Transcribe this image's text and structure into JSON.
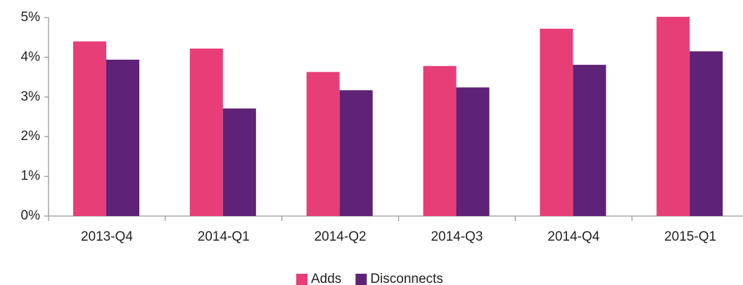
{
  "chart_data": {
    "type": "bar",
    "categories": [
      "2013-Q4",
      "2014-Q1",
      "2014-Q2",
      "2014-Q3",
      "2014-Q4",
      "2015-Q1"
    ],
    "series": [
      {
        "name": "Adds",
        "color": "#e83e78",
        "values": [
          4.4,
          4.22,
          3.63,
          3.78,
          4.72,
          5.02
        ]
      },
      {
        "name": "Disconnects",
        "color": "#5e2377",
        "values": [
          3.94,
          2.71,
          3.17,
          3.24,
          3.81,
          4.15
        ]
      }
    ],
    "ylim": [
      0,
      5
    ],
    "yticks": [
      {
        "value": 0,
        "label": "0%"
      },
      {
        "value": 1,
        "label": "1%"
      },
      {
        "value": 2,
        "label": "2%"
      },
      {
        "value": 3,
        "label": "3%"
      },
      {
        "value": 4,
        "label": "4%"
      },
      {
        "value": 5,
        "label": "5%"
      }
    ],
    "grid": false,
    "legend": "bottom"
  }
}
